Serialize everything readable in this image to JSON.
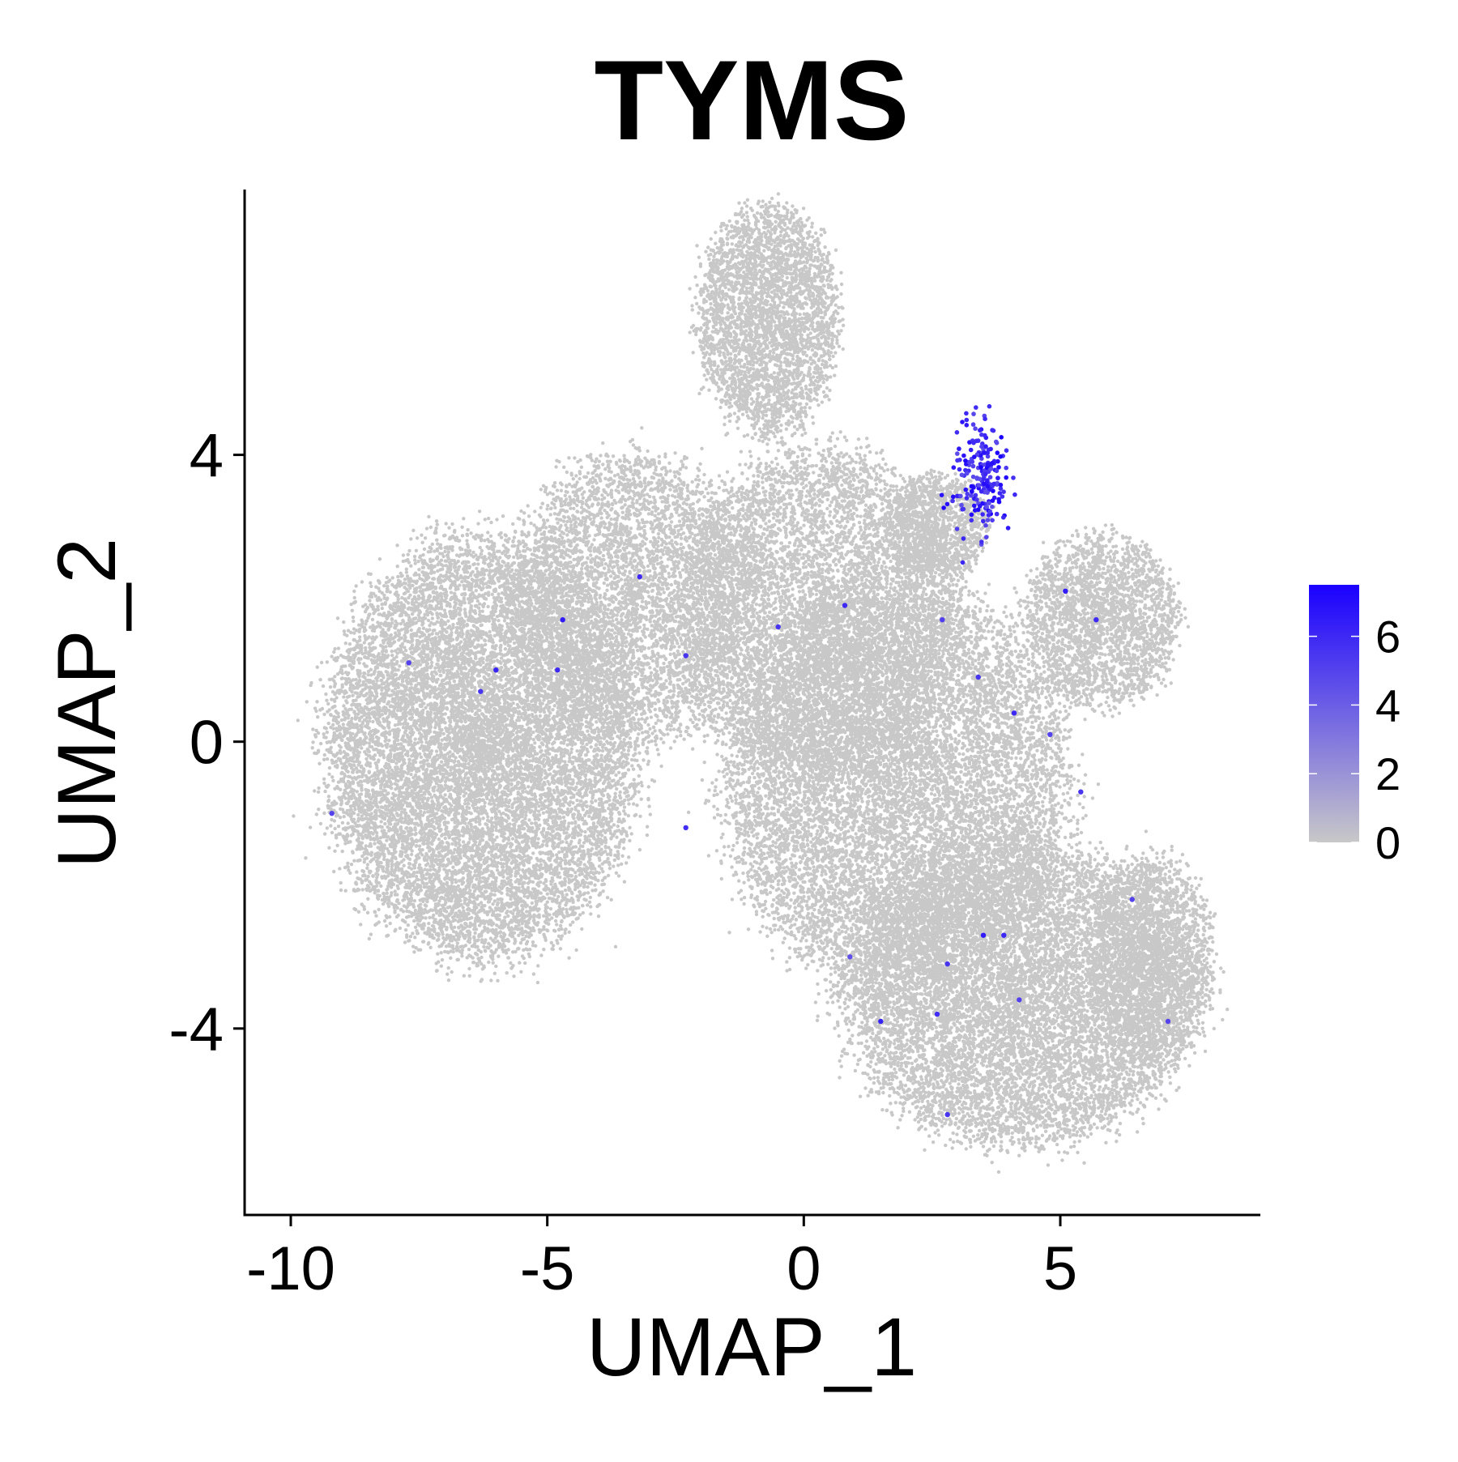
{
  "chart_data": {
    "type": "scatter",
    "title": "TYMS",
    "xlabel": "UMAP_1",
    "ylabel": "UMAP_2",
    "xlim": [
      -10.9,
      8.9
    ],
    "ylim": [
      -6.6,
      7.7
    ],
    "xticks": [
      -10,
      -5,
      0,
      5
    ],
    "xtick_labels": [
      "-10",
      "-5",
      "0",
      "5"
    ],
    "yticks": [
      -4,
      0,
      4
    ],
    "ytick_labels": [
      "-4",
      "0",
      "4"
    ],
    "grid": false,
    "legend": {
      "position": "right",
      "type": "colorbar",
      "range": [
        0,
        7.5
      ],
      "ticks": [
        0,
        2,
        4,
        6
      ],
      "tick_labels": [
        "0",
        "2",
        "4",
        "6"
      ],
      "low_color": "#c8c8c8",
      "high_color": "#1a00ff"
    },
    "point_color_default": "#c8c8c8",
    "clusters": [
      {
        "name": "top-blob",
        "center": [
          -0.7,
          5.9
        ],
        "radius": [
          1.35,
          1.6
        ],
        "count": 3500
      },
      {
        "name": "left-large",
        "center": [
          -6.3,
          -0.1
        ],
        "radius": [
          3.0,
          2.9
        ],
        "count": 13000
      },
      {
        "name": "left-upper",
        "center": [
          -3.3,
          2.0
        ],
        "radius": [
          2.4,
          2.0
        ],
        "count": 5000
      },
      {
        "name": "center-upper",
        "center": [
          0.3,
          1.8
        ],
        "radius": [
          2.7,
          2.3
        ],
        "count": 6500
      },
      {
        "name": "center",
        "center": [
          1.8,
          -0.6
        ],
        "radius": [
          3.3,
          2.8
        ],
        "count": 11000
      },
      {
        "name": "bottom-right",
        "center": [
          4.2,
          -3.5
        ],
        "radius": [
          3.4,
          2.1
        ],
        "count": 10000
      },
      {
        "name": "right-upper",
        "center": [
          5.8,
          1.7
        ],
        "radius": [
          1.5,
          1.2
        ],
        "count": 2500
      },
      {
        "name": "right-lower",
        "center": [
          6.8,
          -3.0
        ],
        "radius": [
          1.2,
          1.4
        ],
        "count": 2000
      },
      {
        "name": "bridge",
        "center": [
          2.6,
          3.0
        ],
        "radius": [
          1.0,
          0.7
        ],
        "count": 1200
      }
    ],
    "highlight_cluster": {
      "center": [
        3.45,
        3.7
      ],
      "spread": [
        0.45,
        0.55
      ],
      "count": 200,
      "value_range": [
        4.5,
        7.5
      ]
    },
    "scattered_expressing_cells": [
      [
        -4.7,
        1.7,
        6.5
      ],
      [
        -4.8,
        1.0,
        6.0
      ],
      [
        -6.0,
        1.0,
        6.2
      ],
      [
        -6.3,
        0.7,
        5.5
      ],
      [
        -3.2,
        2.3,
        6.0
      ],
      [
        -2.3,
        1.2,
        5.5
      ],
      [
        -2.3,
        -1.2,
        5.8
      ],
      [
        -9.2,
        -1.0,
        5.0
      ],
      [
        -7.7,
        1.1,
        5.0
      ],
      [
        0.8,
        1.9,
        6.0
      ],
      [
        -0.5,
        1.6,
        5.5
      ],
      [
        2.7,
        1.7,
        5.2
      ],
      [
        3.4,
        0.9,
        5.5
      ],
      [
        4.1,
        0.4,
        6.0
      ],
      [
        5.1,
        2.1,
        6.5
      ],
      [
        5.7,
        1.7,
        6.0
      ],
      [
        4.8,
        0.1,
        5.0
      ],
      [
        5.4,
        -0.7,
        5.5
      ],
      [
        6.4,
        -2.2,
        5.0
      ],
      [
        2.8,
        -3.1,
        5.5
      ],
      [
        3.5,
        -2.7,
        6.5
      ],
      [
        3.9,
        -2.7,
        6.0
      ],
      [
        1.5,
        -3.9,
        6.2
      ],
      [
        2.6,
        -3.8,
        5.8
      ],
      [
        4.2,
        -3.6,
        5.0
      ],
      [
        2.8,
        -5.2,
        5.5
      ],
      [
        7.1,
        -3.9,
        5.0
      ],
      [
        0.9,
        -3.0,
        4.5
      ]
    ]
  }
}
